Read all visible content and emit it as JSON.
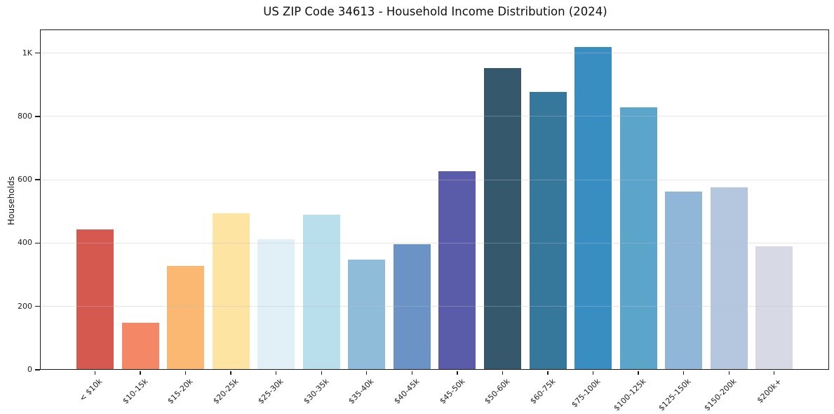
{
  "chart_data": {
    "type": "bar",
    "title": "US ZIP Code 34613 - Household Income Distribution (2024)",
    "xlabel": "",
    "ylabel": "Households",
    "categories": [
      "< $10k",
      "$10-15k",
      "$15-20k",
      "$20-25k",
      "$25-30k",
      "$30-35k",
      "$35-40k",
      "$40-45k",
      "$45-50k",
      "$50-60k",
      "$60-75k",
      "$75-100k",
      "$100-125k",
      "$125-150k",
      "$150-200k",
      "$200k+"
    ],
    "values": [
      443,
      148,
      328,
      494,
      412,
      490,
      348,
      397,
      627,
      953,
      877,
      1018,
      829,
      563,
      576,
      390
    ],
    "bar_colors": [
      "#d6594f",
      "#f48765",
      "#fab873",
      "#fde4a3",
      "#e1f0f7",
      "#badfec",
      "#8fbcd9",
      "#6b93c6",
      "#5b5ca9",
      "#35586c",
      "#36789b",
      "#388ec1",
      "#5ca5ca",
      "#90b7d7",
      "#b5c7df",
      "#d7d9e5"
    ],
    "ylim": [
      0,
      1070
    ],
    "yticks": [
      {
        "value": 0,
        "label": "0"
      },
      {
        "value": 200,
        "label": "200"
      },
      {
        "value": 400,
        "label": "400"
      },
      {
        "value": 600,
        "label": "600"
      },
      {
        "value": 800,
        "label": "800"
      },
      {
        "value": 1000,
        "label": "1K"
      }
    ],
    "grid": "horizontal",
    "x_tick_rotation": 45,
    "style": {
      "background_color": "#ffffff",
      "gridline_color": "#e9e9ec",
      "spine_color": "#1b1b1b",
      "text_color": "#1a1a1a"
    },
    "legend": null
  }
}
